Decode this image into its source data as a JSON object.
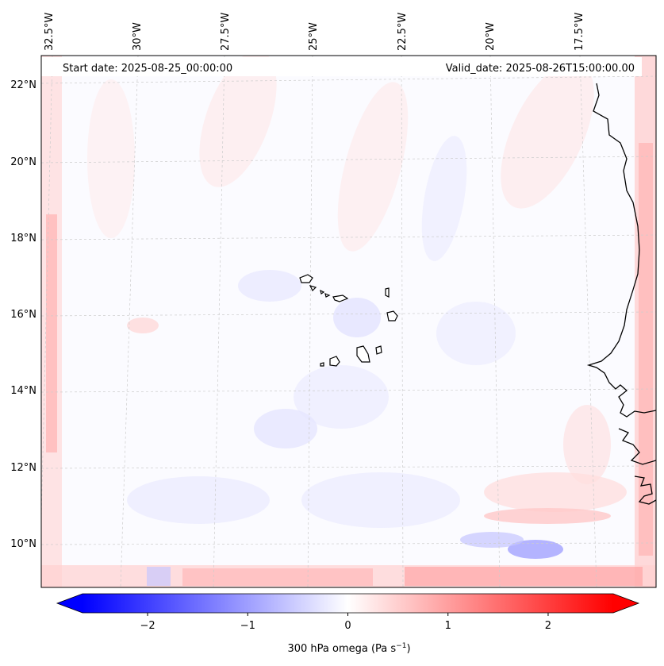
{
  "map": {
    "start_date": "Start date: 2025-08-25_00:00:00",
    "valid_date": "Valid_date: 2025-08-26T15:00:00.00",
    "lon_labels": [
      "32.5°W",
      "30°W",
      "27.5°W",
      "25°W",
      "22.5°W",
      "20°W",
      "17.5°W"
    ],
    "lat_labels": [
      "22°N",
      "20°N",
      "18°N",
      "16°N",
      "14°N",
      "12°N",
      "10°N"
    ],
    "field_name": "300 hPa omega"
  },
  "colorbar": {
    "label_prefix": "300 hPa omega (Pa s",
    "label_exp": "−1",
    "label_suffix": ")",
    "min": -2.65,
    "max": 2.65,
    "ticks": [
      -2,
      -1,
      0,
      1,
      2
    ],
    "tick_labels": [
      "−2",
      "−1",
      "0",
      "1",
      "2"
    ],
    "color_low": "#0000ff",
    "color_mid": "#ffffff",
    "color_high": "#ff0000"
  }
}
